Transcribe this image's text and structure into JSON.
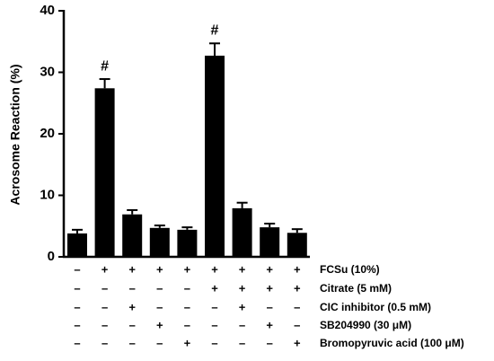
{
  "chart_data": {
    "type": "bar",
    "y_label": "Acrosome Reaction (%)",
    "values": [
      3.8,
      27.4,
      6.9,
      4.7,
      4.4,
      32.7,
      7.9,
      4.8,
      3.9
    ],
    "errors": [
      0.6,
      1.5,
      0.7,
      0.4,
      0.4,
      2.0,
      0.9,
      0.6,
      0.6
    ],
    "value_annotations": [
      null,
      "#",
      null,
      null,
      null,
      "#",
      null,
      null,
      null
    ],
    "color": "#000000",
    "ylim": [
      0,
      40
    ],
    "yticks": [
      0,
      10,
      20,
      30,
      40
    ],
    "treatments": [
      {
        "label": "FCSu (10%)",
        "signs": [
          "–",
          "+",
          "+",
          "+",
          "+",
          "+",
          "+",
          "+",
          "+"
        ]
      },
      {
        "label": "Citrate (5 mM)",
        "signs": [
          "–",
          "–",
          "–",
          "–",
          "–",
          "+",
          "+",
          "+",
          "+"
        ]
      },
      {
        "label": "CIC inhibitor (0.5 mM)",
        "signs": [
          "–",
          "–",
          "+",
          "–",
          "–",
          "–",
          "+",
          "–",
          "–"
        ]
      },
      {
        "label": "SB204990 (30 μM)",
        "signs": [
          "–",
          "–",
          "–",
          "+",
          "–",
          "–",
          "–",
          "+",
          "–"
        ]
      },
      {
        "label": "Bromopyruvic acid (100 μM)",
        "signs": [
          "–",
          "–",
          "–",
          "–",
          "+",
          "–",
          "–",
          "–",
          "+"
        ]
      }
    ]
  }
}
